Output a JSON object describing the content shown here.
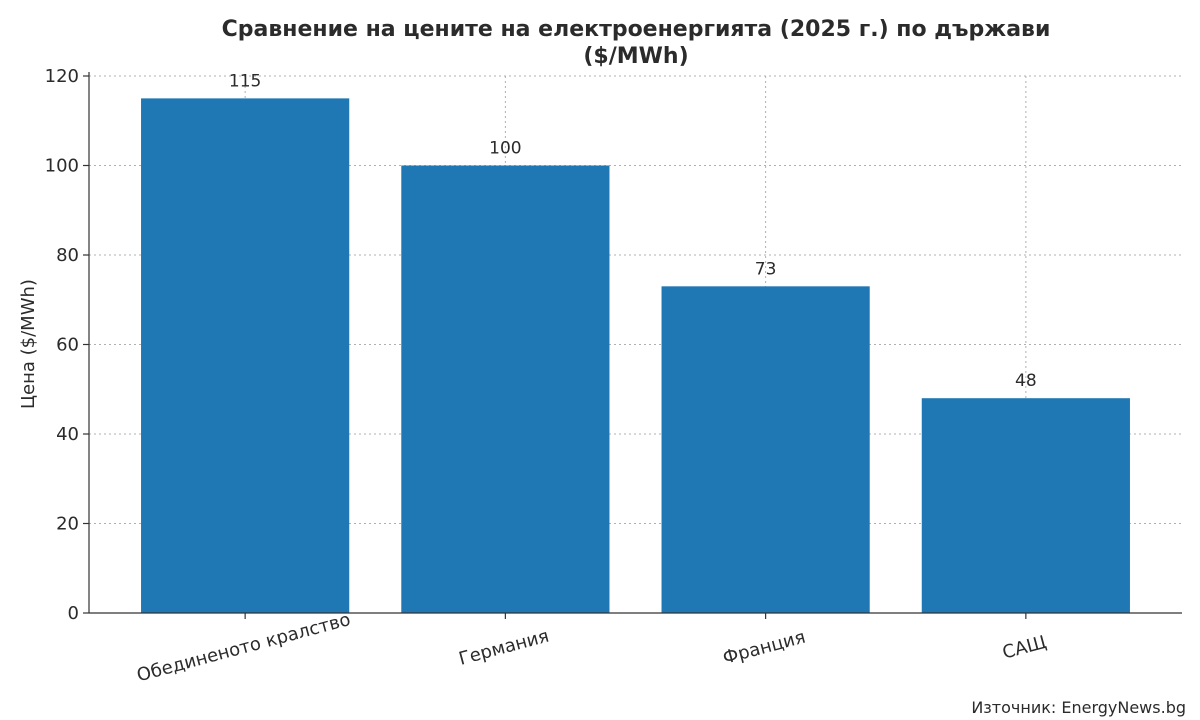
{
  "chart_data": {
    "type": "bar",
    "title_lines": [
      "Сравнение на цените на електроенергията (2025 г.) по държави",
      "($/MWh)"
    ],
    "xlabel": "",
    "ylabel": "Цена ($/MWh)",
    "categories": [
      "Обединеното кралство",
      "Германия",
      "Франция",
      "САЩ"
    ],
    "values": [
      115,
      100,
      73,
      48
    ],
    "data_labels": [
      "115",
      "100",
      "73",
      "48"
    ],
    "ylim": [
      0,
      120
    ],
    "yticks": [
      0,
      20,
      40,
      60,
      80,
      100,
      120
    ],
    "grid": true,
    "bar_color": "#1f77b4"
  },
  "source_note": "Източник: EnergyNews.bg"
}
